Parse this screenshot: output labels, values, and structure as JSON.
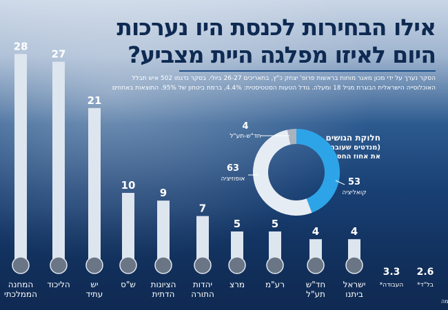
{
  "header": {
    "title_line1": "אילו הבחירות לכנסת היו נערכות",
    "title_line2": "היום לאיזו מפלגה היית מצביע?",
    "note_line1": "הסקר נערך על ידי מכון מאגר מוחות בראשות פרופ' יצחק כ\"ץ, בתאריכים 26-27 ביולי. בסקר נדגמו 502 איש תבלל",
    "note_line2": "האוכלוסייה הישראלית הבוגרת מגיל 18 ומעלה. גודל הטעות הסטטיסטית: 4.4%, ברמת ביטחון של 95%. התוצאות באחוזים"
  },
  "donut_title": {
    "line1": "חלוקת הגושים",
    "line2": "(מנדטים שעוברים",
    "line3": "את אחוז החסימה)"
  },
  "footnote": "*לא עוברות את אחוז החסימה",
  "colors": {
    "bar": "#dde5ef",
    "label": "#ffffff",
    "donut_coalition": "#2ea4e8",
    "donut_opposition": "#e6ecf3",
    "donut_other": "#a9b3bf",
    "leader": "#ffffff"
  },
  "chart_data": [
    {
      "type": "bar",
      "categories": [
        "המחנה הממלכתי",
        "הליכוד",
        "יש עתיד",
        "ש\"ס",
        "הציונות הדתית",
        "יהדות התורה",
        "מרצ",
        "רע\"מ",
        "חד\"ש תע\"ל",
        "ישראל ביתנו",
        "העבודה*",
        "בל\"ד*"
      ],
      "values": [
        28,
        27,
        21,
        10,
        9,
        7,
        5,
        5,
        4,
        4,
        3.3,
        2.6
      ],
      "value_labels": [
        "28",
        "27",
        "21",
        "10",
        "9",
        "7",
        "5",
        "5",
        "4",
        "4",
        "3.3",
        "2.6"
      ],
      "ylim": [
        0,
        30
      ],
      "grid": false
    },
    {
      "type": "pie",
      "variant": "donut",
      "labels": [
        "קואליציה",
        "אופוזיציה",
        "חד\"ש-תע\"ל"
      ],
      "values": [
        53,
        63,
        4
      ],
      "value_labels": [
        "53",
        "63",
        "4"
      ]
    }
  ]
}
